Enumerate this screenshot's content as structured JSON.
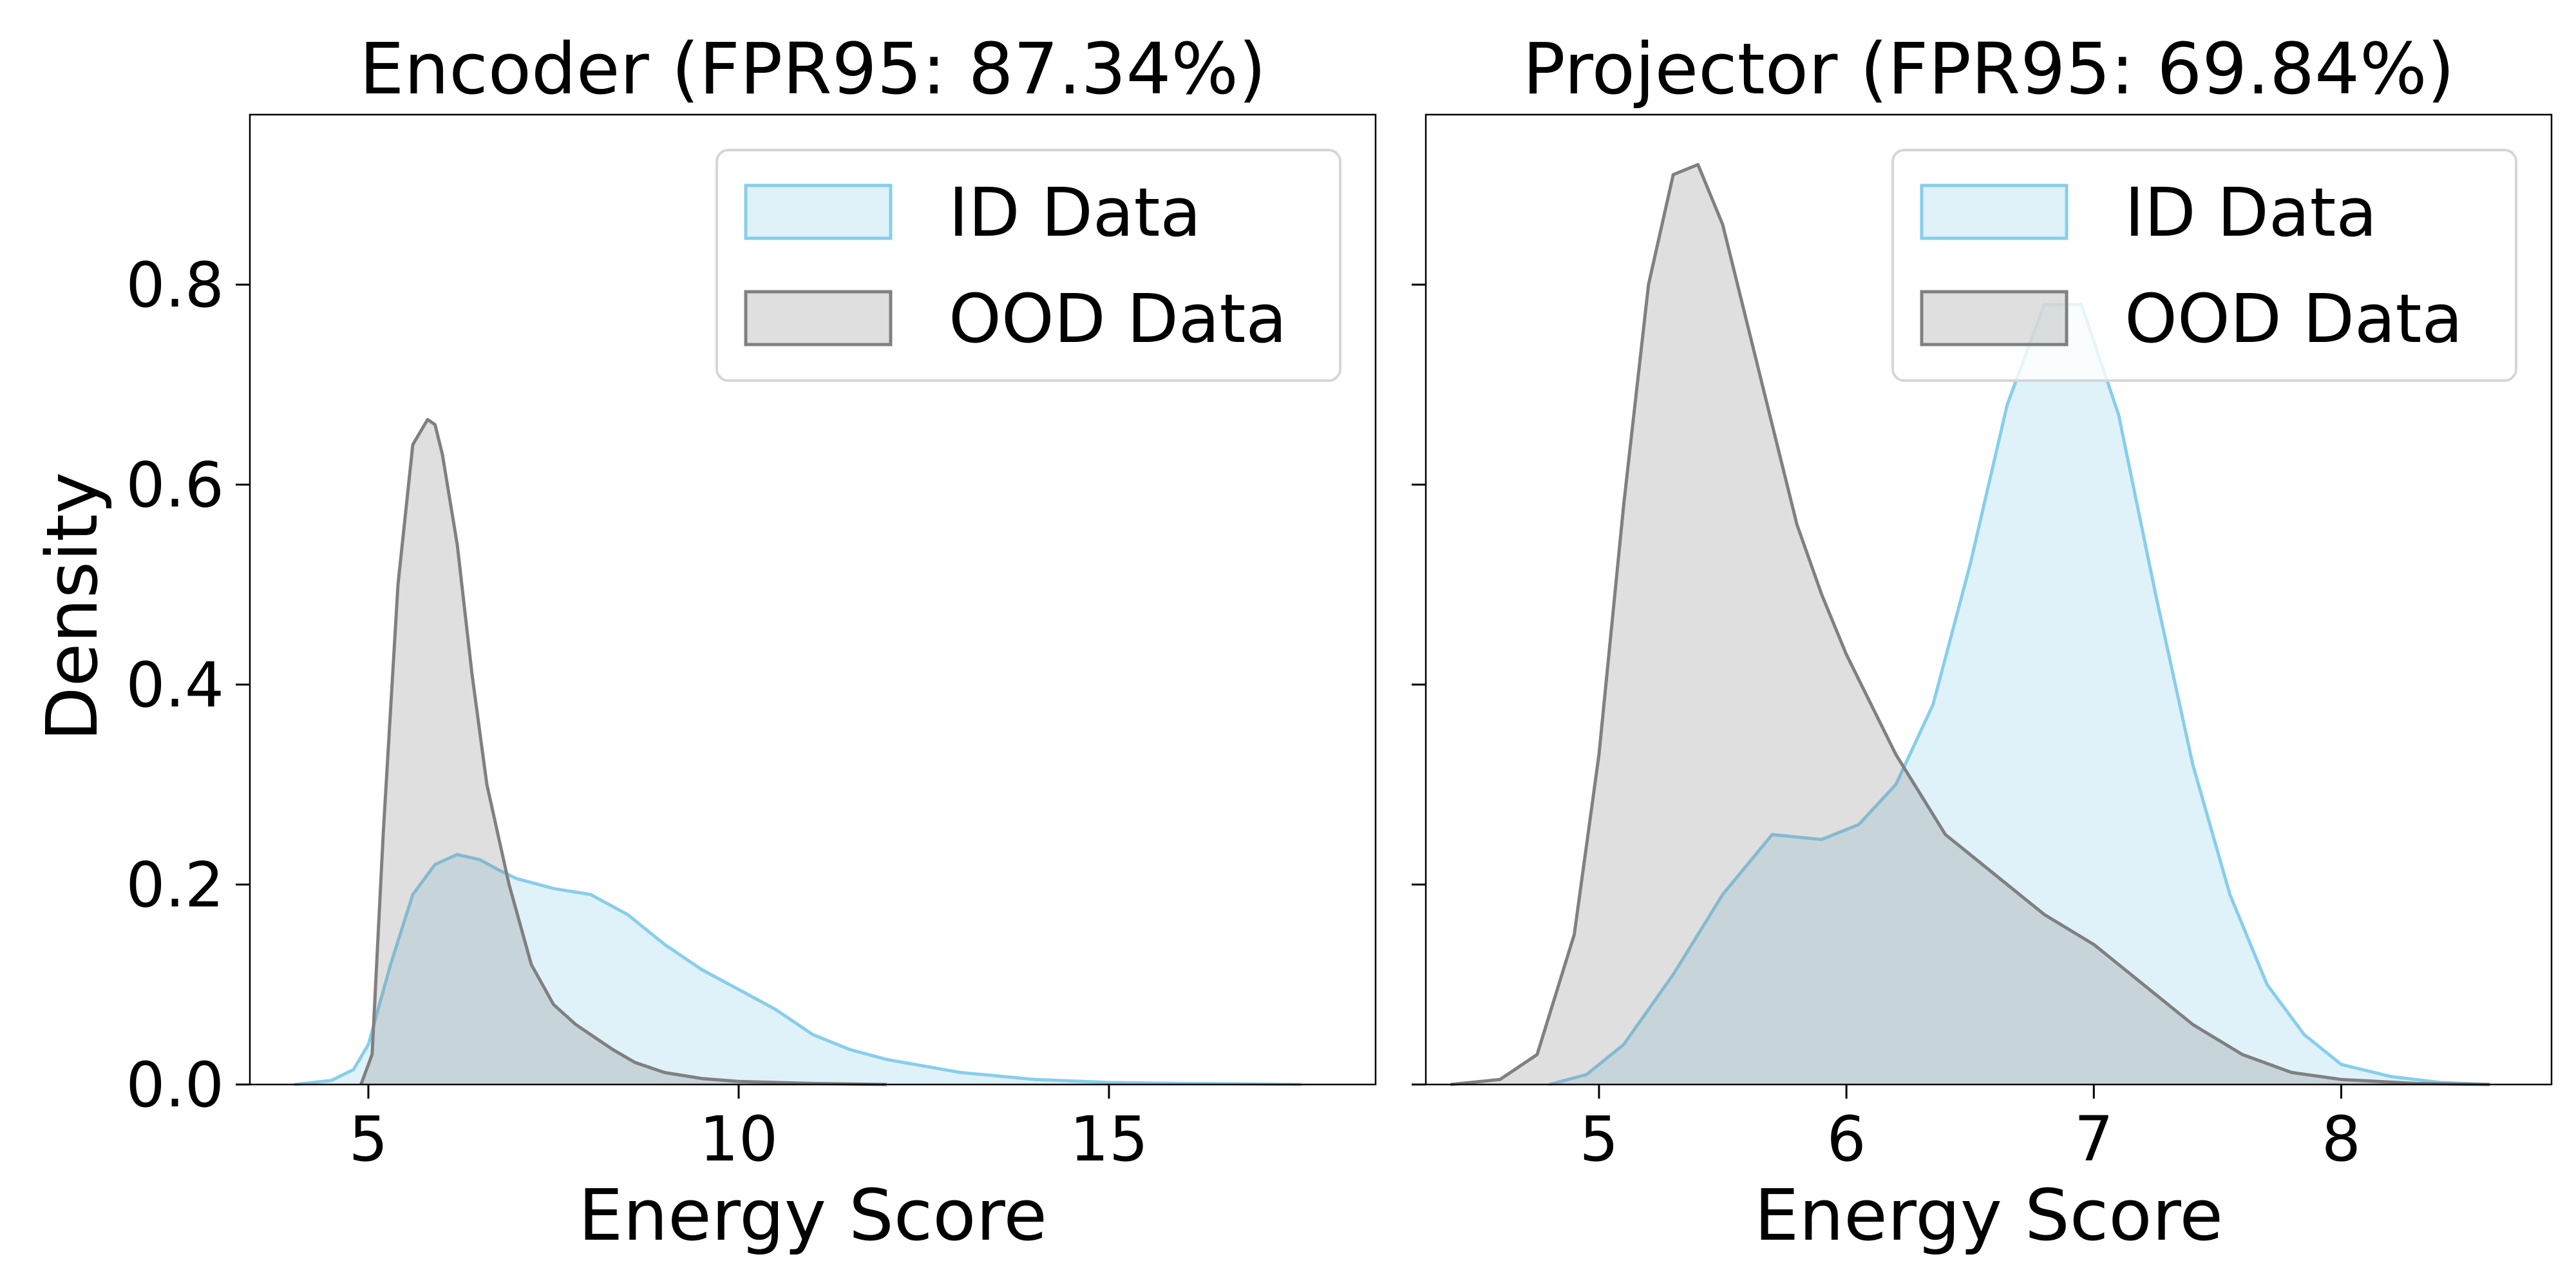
{
  "figure": {
    "ylabel": "Density"
  },
  "chart_data": [
    {
      "type": "area",
      "title": "Encoder (FPR95: 87.34%)",
      "xlabel": "Energy Score",
      "ylabel": "Density",
      "xlim": [
        3.4,
        18.6
      ],
      "ylim": [
        0,
        0.97
      ],
      "xticks": [
        5,
        10,
        15
      ],
      "yticks": [
        0.0,
        0.2,
        0.4,
        0.6,
        0.8
      ],
      "ytick_labels": [
        "0.0",
        "0.2",
        "0.4",
        "0.6",
        "0.8"
      ],
      "legend": {
        "placement": "top-right",
        "entries": [
          "ID Data",
          "OOD Data"
        ]
      },
      "grid": false,
      "series": [
        {
          "name": "ID Data",
          "color": "#87ceeb",
          "x": [
            4.0,
            4.5,
            4.8,
            5.0,
            5.3,
            5.6,
            5.9,
            6.2,
            6.5,
            6.8,
            7.0,
            7.5,
            8.0,
            8.5,
            9.0,
            9.5,
            10.0,
            10.5,
            11.0,
            11.5,
            12.0,
            13.0,
            14.0,
            15.0,
            16.0,
            17.0,
            17.6
          ],
          "y": [
            0.0,
            0.004,
            0.015,
            0.04,
            0.12,
            0.19,
            0.22,
            0.23,
            0.225,
            0.213,
            0.206,
            0.196,
            0.19,
            0.17,
            0.14,
            0.115,
            0.095,
            0.075,
            0.05,
            0.035,
            0.025,
            0.012,
            0.005,
            0.002,
            0.001,
            0.0005,
            0.0
          ]
        },
        {
          "name": "OOD Data",
          "color": "#808080",
          "x": [
            4.9,
            5.05,
            5.2,
            5.4,
            5.6,
            5.8,
            5.9,
            6.0,
            6.2,
            6.4,
            6.6,
            6.9,
            7.2,
            7.5,
            7.8,
            8.0,
            8.3,
            8.6,
            9.0,
            9.5,
            10.0,
            11.0,
            12.0
          ],
          "y": [
            0.0,
            0.03,
            0.25,
            0.5,
            0.64,
            0.665,
            0.66,
            0.63,
            0.54,
            0.41,
            0.3,
            0.2,
            0.12,
            0.08,
            0.06,
            0.05,
            0.035,
            0.022,
            0.012,
            0.006,
            0.003,
            0.001,
            0.0
          ]
        }
      ]
    },
    {
      "type": "area",
      "title": "Projector (FPR95: 69.84%)",
      "xlabel": "Energy Score",
      "xlim": [
        4.3,
        8.85
      ],
      "ylim": [
        0,
        0.97
      ],
      "xticks": [
        5,
        6,
        7,
        8
      ],
      "yticks": [
        0.0,
        0.2,
        0.4,
        0.6,
        0.8
      ],
      "ytick_labels": [],
      "legend": {
        "placement": "top-right",
        "entries": [
          "ID Data",
          "OOD Data"
        ]
      },
      "grid": false,
      "series": [
        {
          "name": "ID Data",
          "color": "#87ceeb",
          "x": [
            4.8,
            4.95,
            5.1,
            5.3,
            5.5,
            5.7,
            5.9,
            6.05,
            6.2,
            6.35,
            6.5,
            6.65,
            6.8,
            6.95,
            7.1,
            7.25,
            7.4,
            7.55,
            7.7,
            7.85,
            8.0,
            8.2,
            8.4,
            8.6
          ],
          "y": [
            0.0,
            0.01,
            0.04,
            0.11,
            0.19,
            0.25,
            0.245,
            0.26,
            0.3,
            0.38,
            0.52,
            0.68,
            0.78,
            0.78,
            0.67,
            0.49,
            0.32,
            0.19,
            0.1,
            0.05,
            0.02,
            0.008,
            0.002,
            0.0
          ]
        },
        {
          "name": "OOD Data",
          "color": "#808080",
          "x": [
            4.4,
            4.6,
            4.75,
            4.9,
            5.0,
            5.1,
            5.2,
            5.3,
            5.4,
            5.5,
            5.6,
            5.7,
            5.8,
            5.9,
            6.0,
            6.2,
            6.4,
            6.6,
            6.8,
            7.0,
            7.2,
            7.4,
            7.6,
            7.8,
            8.0,
            8.3,
            8.6
          ],
          "y": [
            0.0,
            0.005,
            0.03,
            0.15,
            0.33,
            0.58,
            0.8,
            0.91,
            0.92,
            0.86,
            0.76,
            0.66,
            0.56,
            0.49,
            0.43,
            0.33,
            0.25,
            0.21,
            0.17,
            0.14,
            0.1,
            0.06,
            0.03,
            0.012,
            0.005,
            0.001,
            0.0
          ]
        }
      ]
    }
  ]
}
